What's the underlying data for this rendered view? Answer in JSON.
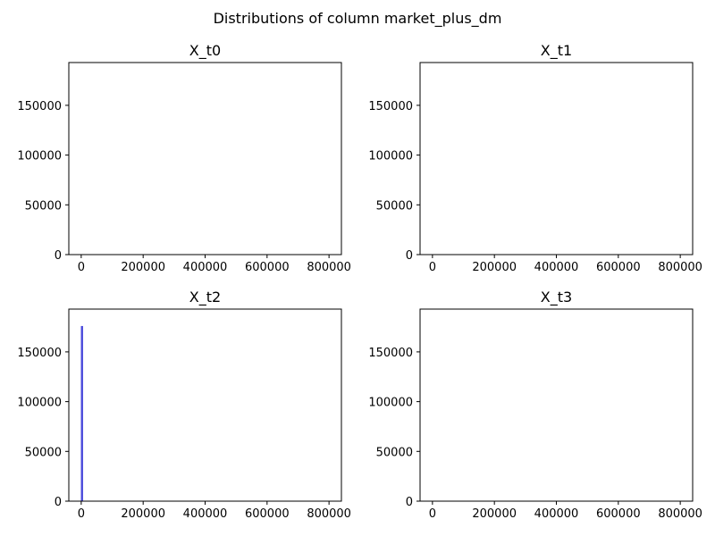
{
  "figure": {
    "suptitle": "Distributions of column market_plus_dm"
  },
  "chart_data": [
    {
      "type": "bar",
      "title": "X_t0",
      "xlabel": "",
      "ylabel": "",
      "xlim": [
        -40000,
        840000
      ],
      "ylim": [
        0,
        193000
      ],
      "xticks": [
        0,
        200000,
        400000,
        600000,
        800000
      ],
      "yticks": [
        0,
        50000,
        100000,
        150000
      ],
      "bar_color": "#4b4bdb",
      "bars": []
    },
    {
      "type": "bar",
      "title": "X_t1",
      "xlabel": "",
      "ylabel": "",
      "xlim": [
        -40000,
        840000
      ],
      "ylim": [
        0,
        193000
      ],
      "xticks": [
        0,
        200000,
        400000,
        600000,
        800000
      ],
      "yticks": [
        0,
        50000,
        100000,
        150000
      ],
      "bar_color": "#4b4bdb",
      "bars": []
    },
    {
      "type": "bar",
      "title": "X_t2",
      "xlabel": "",
      "ylabel": "",
      "xlim": [
        -40000,
        840000
      ],
      "ylim": [
        0,
        193000
      ],
      "xticks": [
        0,
        200000,
        400000,
        600000,
        800000
      ],
      "yticks": [
        0,
        50000,
        100000,
        150000
      ],
      "bar_color": "#4b4bdb",
      "bars": [
        {
          "x0": -1000,
          "x1": 6000,
          "value": 176000
        }
      ]
    },
    {
      "type": "bar",
      "title": "X_t3",
      "xlabel": "",
      "ylabel": "",
      "xlim": [
        -40000,
        840000
      ],
      "ylim": [
        0,
        193000
      ],
      "xticks": [
        0,
        200000,
        400000,
        600000,
        800000
      ],
      "yticks": [
        0,
        50000,
        100000,
        150000
      ],
      "bar_color": "#4b4bdb",
      "bars": []
    }
  ]
}
